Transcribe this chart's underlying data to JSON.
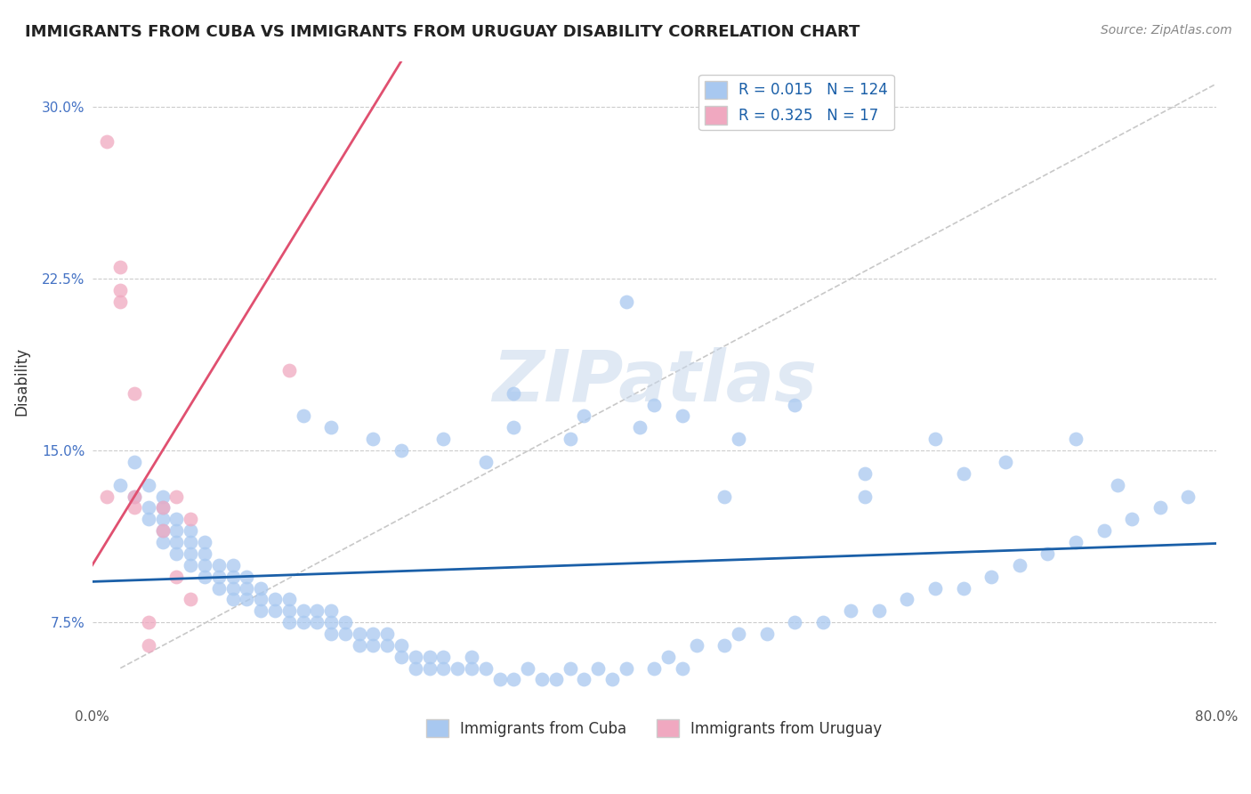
{
  "title": "IMMIGRANTS FROM CUBA VS IMMIGRANTS FROM URUGUAY DISABILITY CORRELATION CHART",
  "source": "Source: ZipAtlas.com",
  "ylabel": "Disability",
  "x_min": 0.0,
  "x_max": 0.8,
  "y_min": 0.04,
  "y_max": 0.32,
  "yticks": [
    0.075,
    0.15,
    0.225,
    0.3
  ],
  "ytick_labels": [
    "7.5%",
    "15.0%",
    "22.5%",
    "30.0%"
  ],
  "legend_r_cuba": "0.015",
  "legend_n_cuba": "124",
  "legend_r_uruguay": "0.325",
  "legend_n_uruguay": "17",
  "cuba_color": "#a8c8f0",
  "uruguay_color": "#f0a8c0",
  "cuba_line_color": "#1a5fa8",
  "uruguay_line_color": "#e05070",
  "watermark": "ZIPatlas",
  "cuba_scatter_x": [
    0.02,
    0.03,
    0.03,
    0.04,
    0.04,
    0.04,
    0.05,
    0.05,
    0.05,
    0.05,
    0.05,
    0.06,
    0.06,
    0.06,
    0.06,
    0.07,
    0.07,
    0.07,
    0.07,
    0.08,
    0.08,
    0.08,
    0.08,
    0.09,
    0.09,
    0.09,
    0.1,
    0.1,
    0.1,
    0.1,
    0.11,
    0.11,
    0.11,
    0.12,
    0.12,
    0.12,
    0.13,
    0.13,
    0.14,
    0.14,
    0.14,
    0.15,
    0.15,
    0.16,
    0.16,
    0.17,
    0.17,
    0.17,
    0.18,
    0.18,
    0.19,
    0.19,
    0.2,
    0.2,
    0.21,
    0.21,
    0.22,
    0.22,
    0.23,
    0.23,
    0.24,
    0.24,
    0.25,
    0.25,
    0.26,
    0.27,
    0.27,
    0.28,
    0.29,
    0.3,
    0.31,
    0.32,
    0.33,
    0.34,
    0.35,
    0.36,
    0.37,
    0.38,
    0.4,
    0.41,
    0.42,
    0.43,
    0.45,
    0.46,
    0.48,
    0.5,
    0.52,
    0.54,
    0.56,
    0.58,
    0.6,
    0.62,
    0.64,
    0.66,
    0.68,
    0.7,
    0.72,
    0.74,
    0.76,
    0.78,
    0.3,
    0.55,
    0.6,
    0.65,
    0.7,
    0.73,
    0.55,
    0.62,
    0.38,
    0.45,
    0.2,
    0.25,
    0.15,
    0.17,
    0.22,
    0.28,
    0.3,
    0.35,
    0.4,
    0.42,
    0.46,
    0.5,
    0.34,
    0.39
  ],
  "cuba_scatter_y": [
    0.135,
    0.13,
    0.145,
    0.12,
    0.125,
    0.135,
    0.11,
    0.115,
    0.12,
    0.125,
    0.13,
    0.105,
    0.11,
    0.115,
    0.12,
    0.1,
    0.105,
    0.11,
    0.115,
    0.095,
    0.1,
    0.105,
    0.11,
    0.09,
    0.095,
    0.1,
    0.085,
    0.09,
    0.095,
    0.1,
    0.085,
    0.09,
    0.095,
    0.08,
    0.085,
    0.09,
    0.08,
    0.085,
    0.075,
    0.08,
    0.085,
    0.075,
    0.08,
    0.075,
    0.08,
    0.07,
    0.075,
    0.08,
    0.07,
    0.075,
    0.065,
    0.07,
    0.065,
    0.07,
    0.065,
    0.07,
    0.06,
    0.065,
    0.055,
    0.06,
    0.055,
    0.06,
    0.055,
    0.06,
    0.055,
    0.055,
    0.06,
    0.055,
    0.05,
    0.05,
    0.055,
    0.05,
    0.05,
    0.055,
    0.05,
    0.055,
    0.05,
    0.055,
    0.055,
    0.06,
    0.055,
    0.065,
    0.065,
    0.07,
    0.07,
    0.075,
    0.075,
    0.08,
    0.08,
    0.085,
    0.09,
    0.09,
    0.095,
    0.1,
    0.105,
    0.11,
    0.115,
    0.12,
    0.125,
    0.13,
    0.16,
    0.14,
    0.155,
    0.145,
    0.155,
    0.135,
    0.13,
    0.14,
    0.215,
    0.13,
    0.155,
    0.155,
    0.165,
    0.16,
    0.15,
    0.145,
    0.175,
    0.165,
    0.17,
    0.165,
    0.155,
    0.17,
    0.155,
    0.16
  ],
  "uruguay_scatter_x": [
    0.01,
    0.01,
    0.02,
    0.02,
    0.02,
    0.03,
    0.03,
    0.03,
    0.04,
    0.04,
    0.05,
    0.05,
    0.06,
    0.07,
    0.14,
    0.06,
    0.07
  ],
  "uruguay_scatter_y": [
    0.285,
    0.13,
    0.22,
    0.215,
    0.23,
    0.175,
    0.13,
    0.125,
    0.065,
    0.075,
    0.115,
    0.125,
    0.13,
    0.12,
    0.185,
    0.095,
    0.085
  ]
}
